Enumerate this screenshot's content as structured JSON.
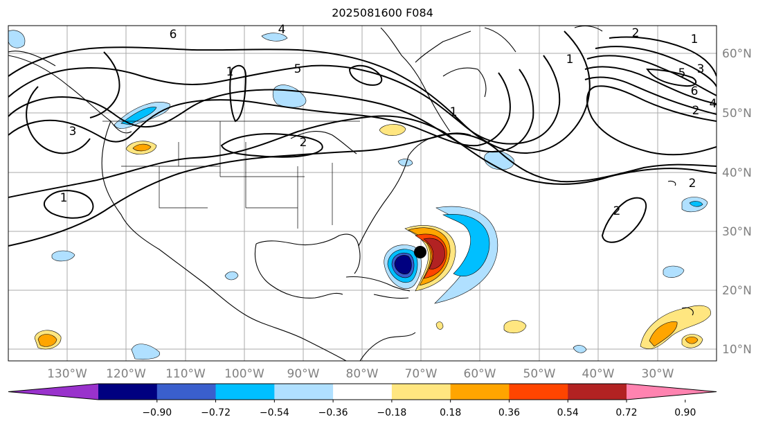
{
  "title": "2025081600 F084",
  "longitude_labels": [
    "130°W",
    "120°W",
    "110°W",
    "100°W",
    "90°W",
    "80°W",
    "70°W",
    "60°W",
    "50°W",
    "40°W",
    "30°W"
  ],
  "latitude_labels": [
    "60°N",
    "50°N",
    "40°N",
    "30°N",
    "20°N",
    "10°N"
  ],
  "contour_labels": [
    "6",
    "2",
    "1",
    "3",
    "5",
    "4",
    "2",
    "1",
    "1",
    "2",
    "2",
    "5",
    "3",
    "6",
    "4",
    "2",
    "1",
    "1"
  ],
  "colorbar": {
    "ticks": [
      "−0.90",
      "−0.72",
      "−0.54",
      "−0.36",
      "−0.18",
      "0.18",
      "0.36",
      "0.54",
      "0.72",
      "0.90"
    ],
    "colors": [
      "#9932cc",
      "#000080",
      "#3a5fcd",
      "#00bfff",
      "#b0e0ff",
      "#ffffff",
      "#ffe680",
      "#ffa500",
      "#ff4500",
      "#b22222",
      "#ff83b0"
    ]
  },
  "marker": "storm-center-marker"
}
